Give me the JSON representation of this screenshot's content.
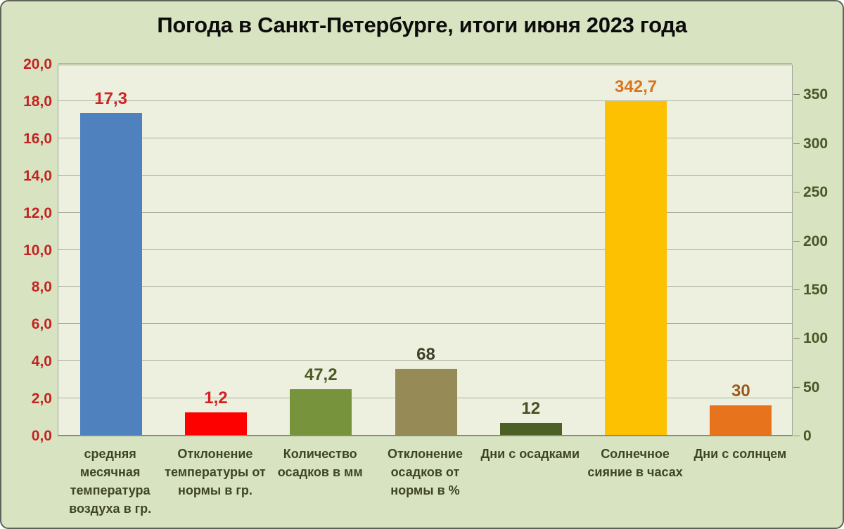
{
  "title": "Погода в Санкт-Петербурге, итоги июня 2023 года",
  "chart_data": {
    "type": "bar",
    "title": "Погода в Санкт-Петербурге, итоги июня 2023 года",
    "xlabel": "",
    "ylabel": "",
    "legend": false,
    "grid": true,
    "background_color": "#d8e4c1",
    "plot_background_color": "#edf0df",
    "categories": [
      "средняя\nмесячная\nтемпература\nвоздуха в гр.",
      "Отклонение\nтемпературы от\nнормы в гр.",
      "Количество\nосадков в мм",
      "Отклонение\nосадков от\nнормы в %",
      "Дни с осадками",
      "Солнечное\nсияние в часах",
      "Дни с солнцем"
    ],
    "values": [
      17.3,
      1.2,
      47.2,
      68,
      12,
      342.7,
      30
    ],
    "value_labels": [
      "17,3",
      "1,2",
      "47,2",
      "68",
      "12",
      "342,7",
      "30"
    ],
    "value_label_colors": [
      "#cf2323",
      "#d42020",
      "#4c5a22",
      "#3d4226",
      "#46511f",
      "#d9731c",
      "#9d5a1e"
    ],
    "bar_colors": [
      "#4e81bd",
      "#fd0000",
      "#77943d",
      "#968b56",
      "#4c6026",
      "#fec101",
      "#e8731d"
    ],
    "bar_axis": [
      "left",
      "left",
      "right",
      "right",
      "right",
      "right",
      "right"
    ],
    "left_axis": {
      "min": 0,
      "max": 20,
      "tick_values": [
        0,
        2,
        4,
        6,
        8,
        10,
        12,
        14,
        16,
        18,
        20
      ],
      "tick_labels": [
        "0,0",
        "2,0",
        "4,0",
        "6,0",
        "8,0",
        "10,0",
        "12,0",
        "14,0",
        "16,0",
        "18,0",
        "20,0"
      ],
      "color": "#c42222"
    },
    "right_axis": {
      "min": 0,
      "max": 381.33,
      "tick_values": [
        0,
        50,
        100,
        150,
        200,
        250,
        300,
        350
      ],
      "tick_labels": [
        "0",
        "50",
        "100",
        "150",
        "200",
        "250",
        "300",
        "350"
      ],
      "color": "#4c5526"
    }
  }
}
